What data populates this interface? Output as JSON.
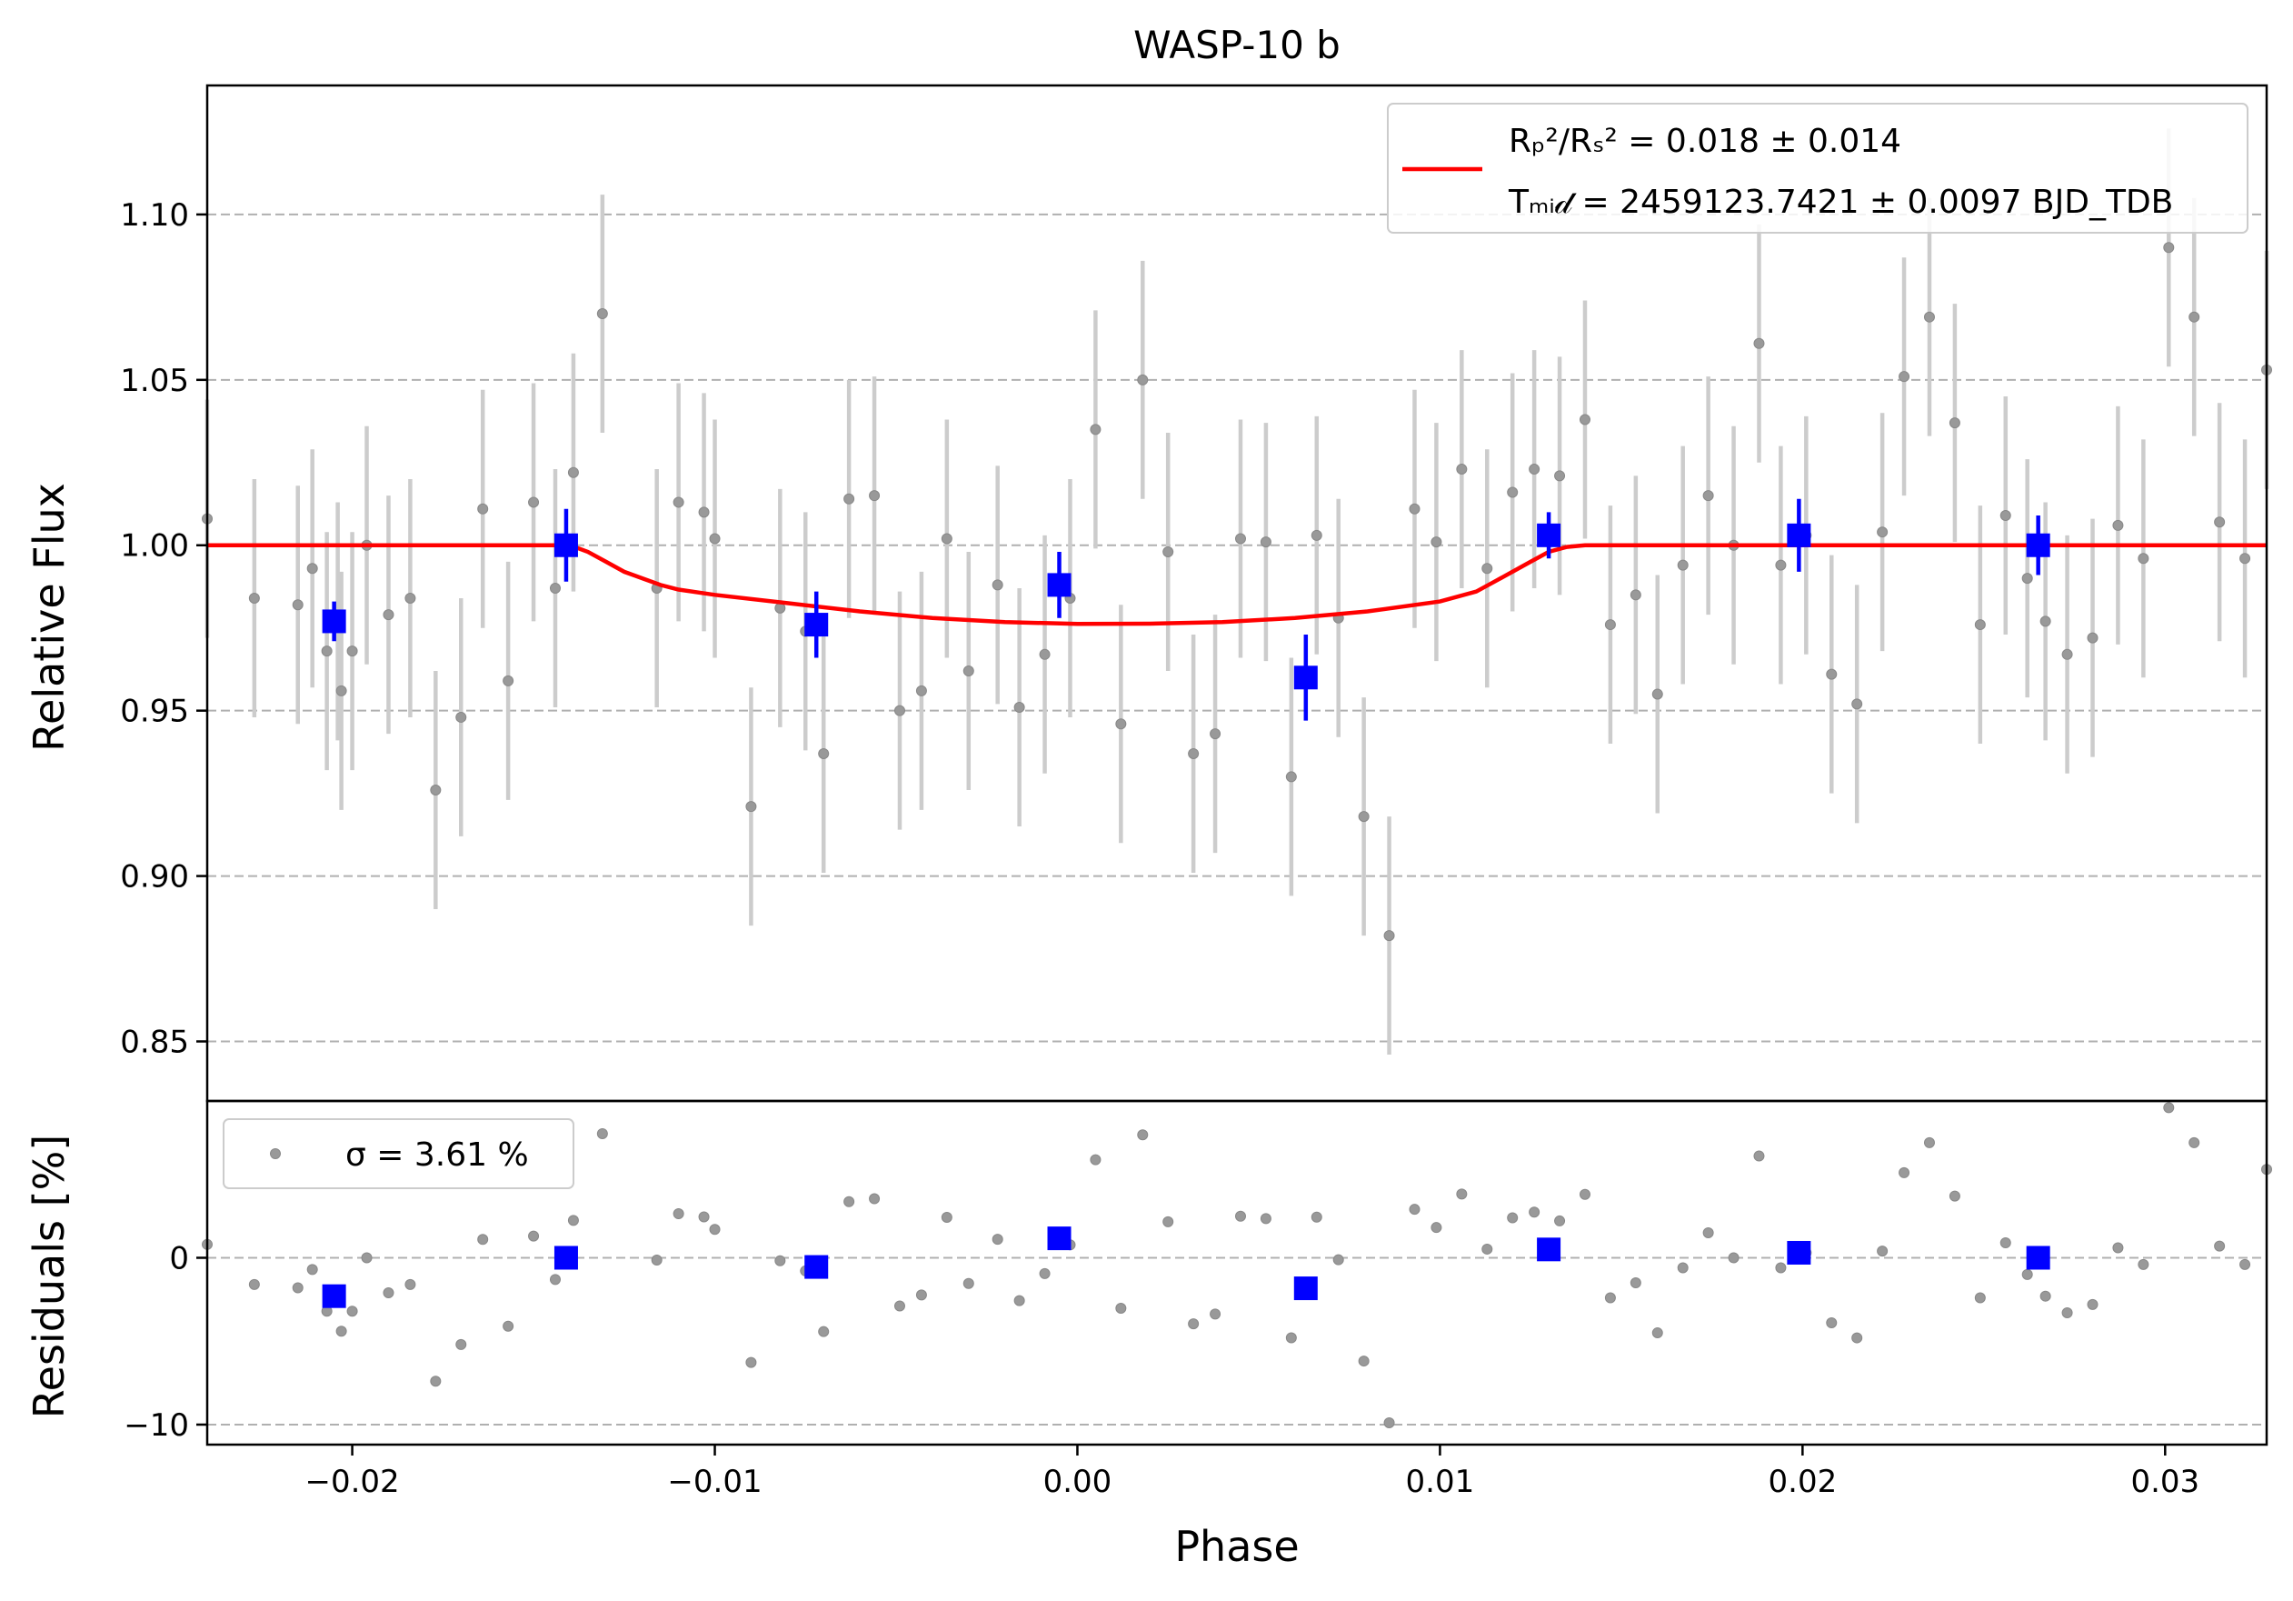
{
  "chart_data": [
    {
      "type": "scatter",
      "title": "WASP-10 b",
      "xlabel": "",
      "ylabel": "Relative Flux",
      "xlim": [
        -0.024,
        0.0328
      ],
      "ylim": [
        0.832,
        1.139
      ],
      "ytick_values": [
        0.85,
        0.9,
        0.95,
        1.0,
        1.05,
        1.1
      ],
      "ytick_labels": [
        "0.85",
        "0.90",
        "0.95",
        "1.00",
        "1.05",
        "1.10"
      ],
      "grid": "horizontal dashed",
      "legend": {
        "placement": "top-right",
        "line1": "Rₚ²/Rₛ² = 0.018 ± 0.014",
        "line2": "Tₘᵢ𝒹 = 2459123.7421 ± 0.0097 BJD_TDB"
      },
      "colors": {
        "data": "#999999",
        "errorbar": "#cccccc",
        "binned": "#0000ff",
        "model": "#ff0000",
        "grid": "#b0b0b0"
      },
      "series": [
        {
          "role": "data",
          "error": 0.036,
          "points": [
            [
              -0.024,
              1.008
            ],
            [
              -0.0227,
              0.984
            ],
            [
              -0.0215,
              0.982
            ],
            [
              -0.0211,
              0.993
            ],
            [
              -0.0207,
              0.968
            ],
            [
              -0.0204,
              0.977
            ],
            [
              -0.0203,
              0.956
            ],
            [
              -0.02,
              0.968
            ],
            [
              -0.0196,
              1.0
            ],
            [
              -0.019,
              0.979
            ],
            [
              -0.0184,
              0.984
            ],
            [
              -0.0177,
              0.926
            ],
            [
              -0.017,
              0.948
            ],
            [
              -0.0164,
              1.011
            ],
            [
              -0.0157,
              0.959
            ],
            [
              -0.015,
              1.013
            ],
            [
              -0.0144,
              0.987
            ],
            [
              -0.0139,
              1.022
            ],
            [
              -0.0131,
              1.07
            ],
            [
              -0.0116,
              0.987
            ],
            [
              -0.011,
              1.013
            ],
            [
              -0.0103,
              1.01
            ],
            [
              -0.01,
              1.002
            ],
            [
              -0.009,
              0.921
            ],
            [
              -0.0082,
              0.981
            ],
            [
              -0.0075,
              0.974
            ],
            [
              -0.007,
              0.937
            ],
            [
              -0.0063,
              1.014
            ],
            [
              -0.0056,
              1.015
            ],
            [
              -0.0049,
              0.95
            ],
            [
              -0.0043,
              0.956
            ],
            [
              -0.0036,
              1.002
            ],
            [
              -0.003,
              0.962
            ],
            [
              -0.0022,
              0.988
            ],
            [
              -0.0016,
              0.951
            ],
            [
              -0.0009,
              0.967
            ],
            [
              -0.0002,
              0.984
            ],
            [
              0.0005,
              1.035
            ],
            [
              0.0012,
              0.946
            ],
            [
              0.0018,
              1.05
            ],
            [
              0.0025,
              0.998
            ],
            [
              0.0032,
              0.937
            ],
            [
              0.0038,
              0.943
            ],
            [
              0.0045,
              1.002
            ],
            [
              0.0052,
              1.001
            ],
            [
              0.0059,
              0.93
            ],
            [
              0.0066,
              1.003
            ],
            [
              0.0072,
              0.978
            ],
            [
              0.0079,
              0.918
            ],
            [
              0.0086,
              0.882
            ],
            [
              0.0093,
              1.011
            ],
            [
              0.0099,
              1.001
            ],
            [
              0.0106,
              1.023
            ],
            [
              0.0113,
              0.993
            ],
            [
              0.012,
              1.016
            ],
            [
              0.0126,
              1.023
            ],
            [
              0.0133,
              1.021
            ],
            [
              0.014,
              1.038
            ],
            [
              0.0147,
              0.976
            ],
            [
              0.0154,
              0.985
            ],
            [
              0.016,
              0.955
            ],
            [
              0.0167,
              0.994
            ],
            [
              0.0174,
              1.015
            ],
            [
              0.0181,
              1.0
            ],
            [
              0.0188,
              1.061
            ],
            [
              0.0194,
              0.994
            ],
            [
              0.0201,
              1.003
            ],
            [
              0.0208,
              0.961
            ],
            [
              0.0215,
              0.952
            ],
            [
              0.0222,
              1.004
            ],
            [
              0.0228,
              1.051
            ],
            [
              0.0235,
              1.069
            ],
            [
              0.0242,
              1.037
            ],
            [
              0.0249,
              0.976
            ],
            [
              0.0256,
              1.009
            ],
            [
              0.0262,
              0.99
            ],
            [
              0.0267,
              0.977
            ],
            [
              0.0273,
              0.967
            ],
            [
              0.028,
              0.972
            ],
            [
              0.0287,
              1.006
            ],
            [
              0.0294,
              0.996
            ],
            [
              0.0301,
              1.09
            ],
            [
              0.0308,
              1.069
            ],
            [
              0.0315,
              1.007
            ],
            [
              0.0322,
              0.996
            ],
            [
              0.0328,
              1.053
            ]
          ]
        },
        {
          "role": "binned",
          "points": [
            [
              -0.0205,
              0.977,
              0.006
            ],
            [
              -0.0141,
              1.0,
              0.011
            ],
            [
              -0.0072,
              0.976,
              0.01
            ],
            [
              -0.0005,
              0.988,
              0.01
            ],
            [
              0.0063,
              0.96,
              0.013
            ],
            [
              0.013,
              1.003,
              0.007
            ],
            [
              0.0199,
              1.003,
              0.011
            ],
            [
              0.0265,
              1.0,
              0.009
            ]
          ]
        },
        {
          "role": "model",
          "points": [
            [
              -0.024,
              1.0
            ],
            [
              -0.014,
              1.0
            ],
            [
              -0.0135,
              0.998
            ],
            [
              -0.013,
              0.995
            ],
            [
              -0.0125,
              0.992
            ],
            [
              -0.012,
              0.99
            ],
            [
              -0.0115,
              0.988
            ],
            [
              -0.011,
              0.9866
            ],
            [
              -0.01,
              0.985
            ],
            [
              -0.008,
              0.9825
            ],
            [
              -0.006,
              0.98
            ],
            [
              -0.004,
              0.978
            ],
            [
              -0.002,
              0.9768
            ],
            [
              0.0,
              0.9762
            ],
            [
              0.002,
              0.9763
            ],
            [
              0.004,
              0.9768
            ],
            [
              0.006,
              0.978
            ],
            [
              0.008,
              0.98
            ],
            [
              0.01,
              0.983
            ],
            [
              0.011,
              0.986
            ],
            [
              0.0115,
              0.989
            ],
            [
              0.012,
              0.992
            ],
            [
              0.0125,
              0.995
            ],
            [
              0.013,
              0.998
            ],
            [
              0.0135,
              0.9995
            ],
            [
              0.014,
              1.0
            ],
            [
              0.0328,
              1.0
            ]
          ]
        }
      ]
    },
    {
      "type": "scatter",
      "xlabel": "Phase",
      "ylabel": "Residuals [%]",
      "xlim": [
        -0.024,
        0.0328
      ],
      "ylim": [
        -11.2,
        9.4
      ],
      "xtick_values": [
        -0.02,
        -0.01,
        0.0,
        0.01,
        0.02,
        0.03
      ],
      "xtick_labels": [
        "−0.02",
        "−0.01",
        "0.00",
        "0.01",
        "0.02",
        "0.03"
      ],
      "ytick_values": [
        -10,
        0
      ],
      "ytick_labels": [
        "−10",
        "0"
      ],
      "grid": "horizontal dashed",
      "legend": {
        "placement": "top-left",
        "label": "σ = 3.61 %"
      }
    }
  ]
}
